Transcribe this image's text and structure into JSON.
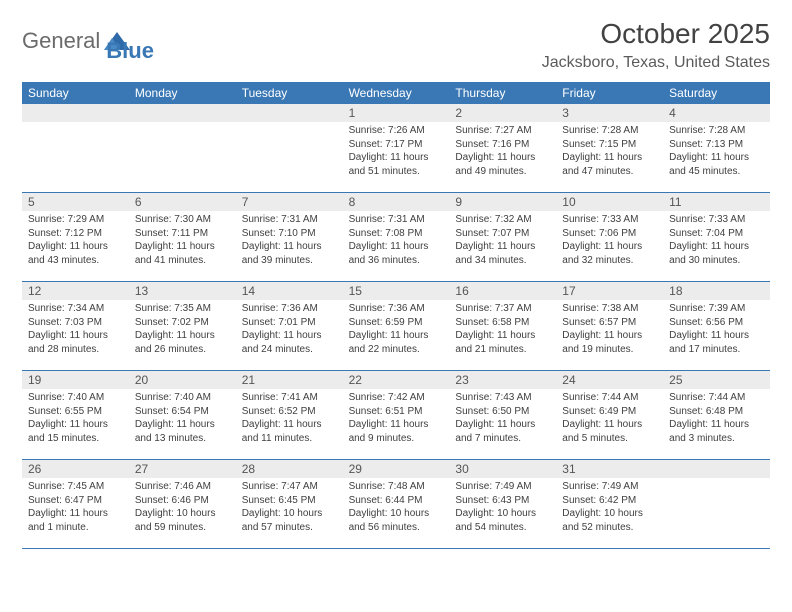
{
  "brand": {
    "text1": "General",
    "text2": "Blue"
  },
  "header": {
    "title": "October 2025",
    "location": "Jacksboro, Texas, United States"
  },
  "colors": {
    "header_bg": "#3a78b5",
    "header_text": "#ffffff",
    "daynum_bg": "#ececec",
    "border": "#3a78b5"
  },
  "columns": [
    "Sunday",
    "Monday",
    "Tuesday",
    "Wednesday",
    "Thursday",
    "Friday",
    "Saturday"
  ],
  "weeks": [
    [
      null,
      null,
      null,
      {
        "n": "1",
        "sr": "7:26 AM",
        "ss": "7:17 PM",
        "dl": "11 hours and 51 minutes."
      },
      {
        "n": "2",
        "sr": "7:27 AM",
        "ss": "7:16 PM",
        "dl": "11 hours and 49 minutes."
      },
      {
        "n": "3",
        "sr": "7:28 AM",
        "ss": "7:15 PM",
        "dl": "11 hours and 47 minutes."
      },
      {
        "n": "4",
        "sr": "7:28 AM",
        "ss": "7:13 PM",
        "dl": "11 hours and 45 minutes."
      }
    ],
    [
      {
        "n": "5",
        "sr": "7:29 AM",
        "ss": "7:12 PM",
        "dl": "11 hours and 43 minutes."
      },
      {
        "n": "6",
        "sr": "7:30 AM",
        "ss": "7:11 PM",
        "dl": "11 hours and 41 minutes."
      },
      {
        "n": "7",
        "sr": "7:31 AM",
        "ss": "7:10 PM",
        "dl": "11 hours and 39 minutes."
      },
      {
        "n": "8",
        "sr": "7:31 AM",
        "ss": "7:08 PM",
        "dl": "11 hours and 36 minutes."
      },
      {
        "n": "9",
        "sr": "7:32 AM",
        "ss": "7:07 PM",
        "dl": "11 hours and 34 minutes."
      },
      {
        "n": "10",
        "sr": "7:33 AM",
        "ss": "7:06 PM",
        "dl": "11 hours and 32 minutes."
      },
      {
        "n": "11",
        "sr": "7:33 AM",
        "ss": "7:04 PM",
        "dl": "11 hours and 30 minutes."
      }
    ],
    [
      {
        "n": "12",
        "sr": "7:34 AM",
        "ss": "7:03 PM",
        "dl": "11 hours and 28 minutes."
      },
      {
        "n": "13",
        "sr": "7:35 AM",
        "ss": "7:02 PM",
        "dl": "11 hours and 26 minutes."
      },
      {
        "n": "14",
        "sr": "7:36 AM",
        "ss": "7:01 PM",
        "dl": "11 hours and 24 minutes."
      },
      {
        "n": "15",
        "sr": "7:36 AM",
        "ss": "6:59 PM",
        "dl": "11 hours and 22 minutes."
      },
      {
        "n": "16",
        "sr": "7:37 AM",
        "ss": "6:58 PM",
        "dl": "11 hours and 21 minutes."
      },
      {
        "n": "17",
        "sr": "7:38 AM",
        "ss": "6:57 PM",
        "dl": "11 hours and 19 minutes."
      },
      {
        "n": "18",
        "sr": "7:39 AM",
        "ss": "6:56 PM",
        "dl": "11 hours and 17 minutes."
      }
    ],
    [
      {
        "n": "19",
        "sr": "7:40 AM",
        "ss": "6:55 PM",
        "dl": "11 hours and 15 minutes."
      },
      {
        "n": "20",
        "sr": "7:40 AM",
        "ss": "6:54 PM",
        "dl": "11 hours and 13 minutes."
      },
      {
        "n": "21",
        "sr": "7:41 AM",
        "ss": "6:52 PM",
        "dl": "11 hours and 11 minutes."
      },
      {
        "n": "22",
        "sr": "7:42 AM",
        "ss": "6:51 PM",
        "dl": "11 hours and 9 minutes."
      },
      {
        "n": "23",
        "sr": "7:43 AM",
        "ss": "6:50 PM",
        "dl": "11 hours and 7 minutes."
      },
      {
        "n": "24",
        "sr": "7:44 AM",
        "ss": "6:49 PM",
        "dl": "11 hours and 5 minutes."
      },
      {
        "n": "25",
        "sr": "7:44 AM",
        "ss": "6:48 PM",
        "dl": "11 hours and 3 minutes."
      }
    ],
    [
      {
        "n": "26",
        "sr": "7:45 AM",
        "ss": "6:47 PM",
        "dl": "11 hours and 1 minute."
      },
      {
        "n": "27",
        "sr": "7:46 AM",
        "ss": "6:46 PM",
        "dl": "10 hours and 59 minutes."
      },
      {
        "n": "28",
        "sr": "7:47 AM",
        "ss": "6:45 PM",
        "dl": "10 hours and 57 minutes."
      },
      {
        "n": "29",
        "sr": "7:48 AM",
        "ss": "6:44 PM",
        "dl": "10 hours and 56 minutes."
      },
      {
        "n": "30",
        "sr": "7:49 AM",
        "ss": "6:43 PM",
        "dl": "10 hours and 54 minutes."
      },
      {
        "n": "31",
        "sr": "7:49 AM",
        "ss": "6:42 PM",
        "dl": "10 hours and 52 minutes."
      },
      null
    ]
  ],
  "labels": {
    "sunrise": "Sunrise:",
    "sunset": "Sunset:",
    "daylight": "Daylight:"
  }
}
